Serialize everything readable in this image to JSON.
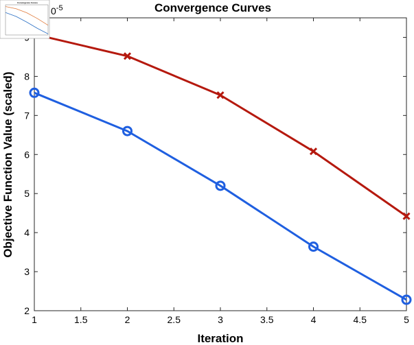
{
  "chart_data": {
    "type": "line",
    "title": "Convergence Curves",
    "xlabel": "Iteration",
    "ylabel": "Objective Function Value (scaled)",
    "y_exponent_label": "0",
    "y_exponent_power": "-5",
    "xlim": [
      1,
      5
    ],
    "ylim": [
      2,
      9.5
    ],
    "x_ticks": [
      "1",
      "1.5",
      "2",
      "2.5",
      "3",
      "3.5",
      "4",
      "4.5",
      "5"
    ],
    "y_ticks": [
      "2",
      "3",
      "4",
      "5",
      "6",
      "7",
      "8",
      "9"
    ],
    "grid": false,
    "legend": "none",
    "x": [
      1,
      2,
      3,
      4,
      5
    ],
    "series": [
      {
        "marker": "x",
        "color": "#b5190e",
        "values": [
          9.08,
          8.52,
          7.52,
          6.08,
          4.42
        ]
      },
      {
        "marker": "o",
        "color": "#1f5fe0",
        "values": [
          7.58,
          6.6,
          5.2,
          3.64,
          2.28
        ]
      }
    ],
    "inset_thumbnail": {
      "title": "Convergence Curves",
      "series_colors": [
        "#e07a3a",
        "#2a6fc4"
      ]
    }
  }
}
